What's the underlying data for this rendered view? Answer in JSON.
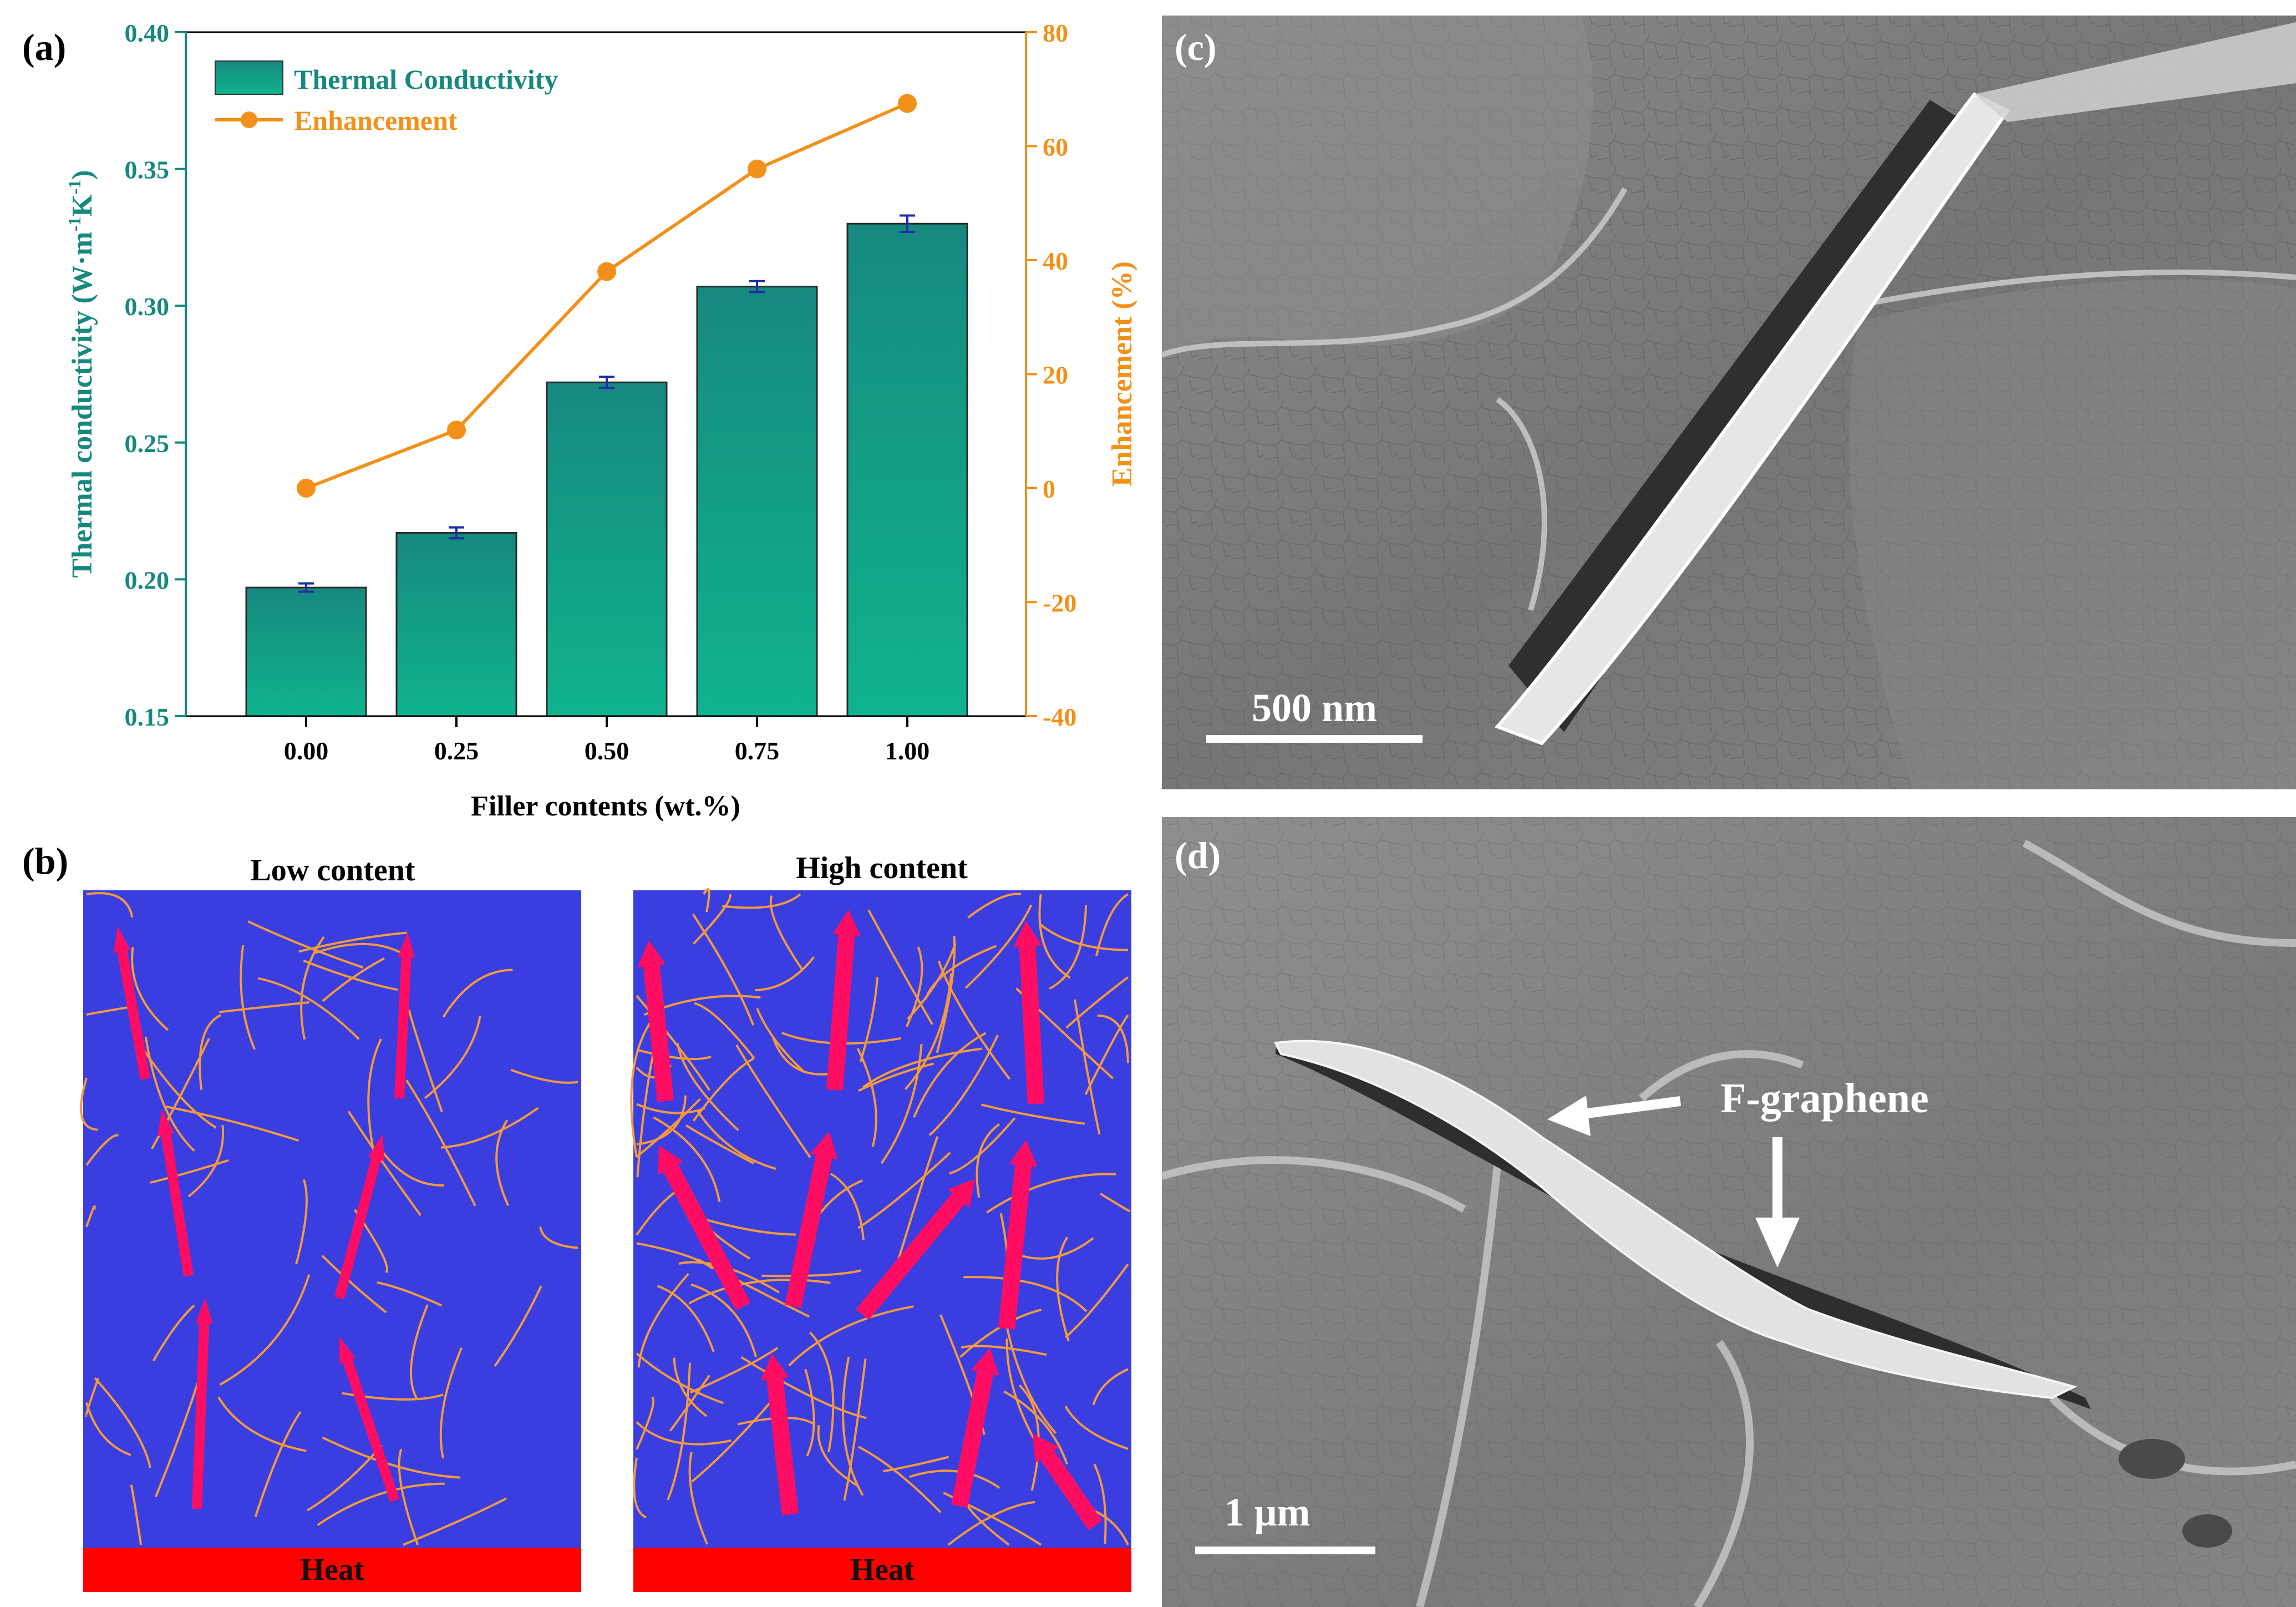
{
  "panels": {
    "a": "(a)",
    "b": "(b)",
    "c": "(c)",
    "d": "(d)"
  },
  "colors": {
    "bar_top": "#16897f",
    "bar_bottom": "#0fb38e",
    "line": "#f39019",
    "left_axis": "#16897f",
    "right_axis": "#f39019",
    "error_bar": "#1f2ea8",
    "matrix_blue": "#3a3ee0",
    "heat_red": "#ff0000",
    "fiber_orange": "#f39a3f",
    "arrow_pink": "#ff0d63"
  },
  "chart_data": {
    "type": "bar",
    "categories": [
      "0.00",
      "0.25",
      "0.50",
      "0.75",
      "1.00"
    ],
    "xlabel": "Filler contents (wt.%)",
    "ylabel_prefix": "Thermal conductivity (W·m",
    "ylabel_sup1": "-1",
    "ylabel_mid": "K",
    "ylabel_sup2": "-1",
    "ylabel_suffix": ")",
    "y2label": "Enhancement (%)",
    "ylim": [
      0.15,
      0.4
    ],
    "yticks": [
      "0.15",
      "0.20",
      "0.25",
      "0.30",
      "0.35",
      "0.40"
    ],
    "y2lim": [
      -40,
      80
    ],
    "y2ticks": [
      "-40",
      "-20",
      "0",
      "20",
      "40",
      "60",
      "80"
    ],
    "legend_position": "top-left",
    "grid": false,
    "series": [
      {
        "name": "Thermal Conductivity",
        "kind": "bar",
        "axis": "left",
        "values": [
          0.197,
          0.217,
          0.272,
          0.307,
          0.33
        ],
        "errors": [
          0.0015,
          0.002,
          0.002,
          0.002,
          0.003
        ]
      },
      {
        "name": "Enhancement",
        "kind": "line",
        "axis": "right",
        "values": [
          0,
          10.2,
          38,
          56,
          67.5
        ]
      }
    ]
  },
  "schematic": {
    "low": {
      "title": "Low content",
      "heat": "Heat"
    },
    "high": {
      "title": "High content",
      "heat": "Heat"
    }
  },
  "micrographs": {
    "c": {
      "scale_label": "500 nm"
    },
    "d": {
      "scale_label": "1 μm",
      "annotation": "F-graphene"
    }
  }
}
